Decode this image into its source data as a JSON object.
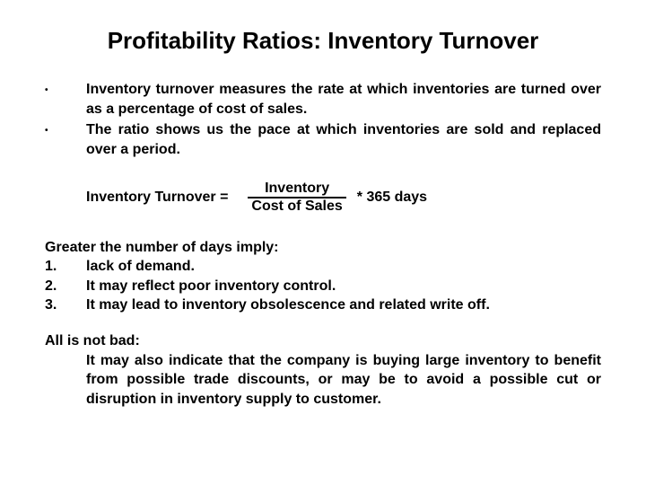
{
  "title": "Profitability Ratios: Inventory Turnover",
  "bullets": {
    "b1": "Inventory turnover measures the rate at which inventories are turned over as a percentage of cost of sales.",
    "b2": "The ratio shows us the pace at which inventories are sold and replaced over a period."
  },
  "formula": {
    "left": "Inventory Turnover =",
    "numerator": "Inventory",
    "denominator": "Cost of Sales",
    "right": "* 365 days"
  },
  "imply": {
    "heading": "Greater the number of days imply:",
    "n1": "1.",
    "t1": "lack of demand.",
    "n2": "2.",
    "t2": "It may reflect poor inventory control.",
    "n3": "3.",
    "t3": "It may lead to inventory obsolescence and related write off."
  },
  "closing": {
    "line1": "All is not bad:",
    "rest": "It may also indicate that the company is buying large inventory to benefit from possible trade discounts, or may be to avoid a possible cut or disruption in inventory supply to customer."
  },
  "style": {
    "background": "#ffffff",
    "text_color": "#000000",
    "title_fontsize": 26,
    "body_fontsize": 16,
    "font_family": "Arial"
  }
}
